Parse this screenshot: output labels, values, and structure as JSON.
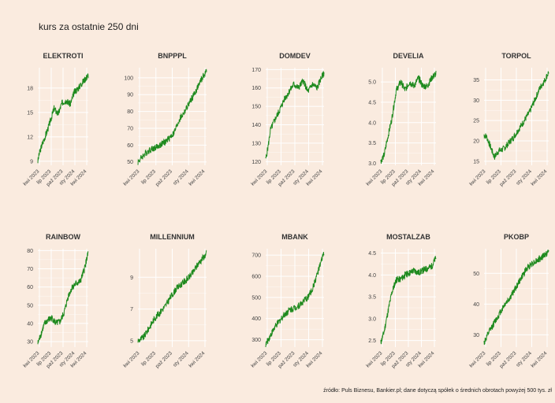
{
  "title": "kurs za ostatnie 250 dni",
  "caption": "źródło: Puls Biznesu, Bankier.pl; dane dotyczą spółek o średnich obrotach powyżej 500 tys. zł",
  "colors": {
    "background": "#faebdf",
    "line": "#1e8a1e",
    "grid": "#ffffff"
  },
  "chart_data": [
    {
      "type": "line",
      "title": "ELEKTROTI",
      "ylim": [
        8.5,
        20.5
      ],
      "yticks": [
        9,
        12,
        15,
        18
      ],
      "xticks": [
        "kwi 2023",
        "lip 2023",
        "paź 2023",
        "sty 2024",
        "kwi 2024"
      ],
      "anchors": [
        [
          0,
          9.0
        ],
        [
          8,
          10.0
        ],
        [
          20,
          11.0
        ],
        [
          40,
          12.3
        ],
        [
          60,
          13.8
        ],
        [
          80,
          15.5
        ],
        [
          100,
          14.8
        ],
        [
          120,
          16.2
        ],
        [
          140,
          16.5
        ],
        [
          160,
          16.0
        ],
        [
          180,
          17.5
        ],
        [
          200,
          18.0
        ],
        [
          220,
          18.7
        ],
        [
          249,
          19.6
        ]
      ]
    },
    {
      "type": "line",
      "title": "BNPPPL",
      "ylim": [
        48,
        106
      ],
      "yticks": [
        50,
        60,
        70,
        80,
        90,
        100
      ],
      "xticks": [
        "kwi 2023",
        "lip 2023",
        "paź 2023",
        "sty 2024",
        "kwi 2024"
      ],
      "anchors": [
        [
          0,
          50
        ],
        [
          20,
          54
        ],
        [
          40,
          57
        ],
        [
          70,
          59
        ],
        [
          100,
          62
        ],
        [
          130,
          67
        ],
        [
          150,
          75
        ],
        [
          170,
          80
        ],
        [
          190,
          86
        ],
        [
          210,
          92
        ],
        [
          230,
          99
        ],
        [
          249,
          104
        ]
      ]
    },
    {
      "type": "line",
      "title": "DOMDEV",
      "ylim": [
        118,
        171
      ],
      "yticks": [
        120,
        130,
        140,
        150,
        160,
        170
      ],
      "xticks": [
        "kwi 2023",
        "lip 2023",
        "paź 2023",
        "sty 2024",
        "kwi 2024"
      ],
      "anchors": [
        [
          0,
          121
        ],
        [
          10,
          128
        ],
        [
          20,
          137
        ],
        [
          40,
          143
        ],
        [
          60,
          148
        ],
        [
          80,
          154
        ],
        [
          100,
          158
        ],
        [
          120,
          162
        ],
        [
          140,
          160
        ],
        [
          160,
          164
        ],
        [
          180,
          158
        ],
        [
          200,
          162
        ],
        [
          220,
          160
        ],
        [
          235,
          165
        ],
        [
          249,
          168
        ]
      ]
    },
    {
      "type": "line",
      "title": "DEVELIA",
      "ylim": [
        2.95,
        5.35
      ],
      "yticks": [
        3.0,
        3.5,
        4.0,
        4.5,
        5.0
      ],
      "xticks": [
        "kwi 2023",
        "lip 2023",
        "paź 2023",
        "sty 2024",
        "kwi 2024"
      ],
      "anchors": [
        [
          0,
          3.05
        ],
        [
          15,
          3.2
        ],
        [
          30,
          3.6
        ],
        [
          50,
          4.1
        ],
        [
          70,
          4.8
        ],
        [
          90,
          5.0
        ],
        [
          110,
          4.8
        ],
        [
          130,
          5.0
        ],
        [
          150,
          4.9
        ],
        [
          170,
          5.1
        ],
        [
          190,
          4.9
        ],
        [
          210,
          4.9
        ],
        [
          230,
          5.1
        ],
        [
          249,
          5.2
        ]
      ]
    },
    {
      "type": "line",
      "title": "TORPOL",
      "ylim": [
        14,
        38
      ],
      "yticks": [
        15,
        20,
        25,
        30,
        35
      ],
      "xticks": [
        "kwi 2023",
        "lip 2023",
        "paź 2023",
        "sty 2024",
        "kwi 2024"
      ],
      "anchors": [
        [
          0,
          21.5
        ],
        [
          10,
          21.0
        ],
        [
          25,
          18.5
        ],
        [
          40,
          16.0
        ],
        [
          55,
          17.5
        ],
        [
          75,
          18.0
        ],
        [
          95,
          19.5
        ],
        [
          115,
          21.0
        ],
        [
          135,
          23.0
        ],
        [
          155,
          25.0
        ],
        [
          175,
          27.0
        ],
        [
          195,
          30.0
        ],
        [
          215,
          33.0
        ],
        [
          235,
          35.0
        ],
        [
          249,
          37.0
        ]
      ]
    },
    {
      "type": "line",
      "title": "RAINBOW",
      "ylim": [
        27,
        81
      ],
      "yticks": [
        30,
        40,
        50,
        60,
        70,
        80
      ],
      "xticks": [
        "kwi 2023",
        "lip 2023",
        "paź 2023",
        "sty 2024",
        "kwi 2024"
      ],
      "anchors": [
        [
          0,
          29
        ],
        [
          15,
          34
        ],
        [
          30,
          39
        ],
        [
          50,
          42
        ],
        [
          70,
          43
        ],
        [
          90,
          40
        ],
        [
          110,
          41
        ],
        [
          130,
          46
        ],
        [
          150,
          55
        ],
        [
          170,
          60
        ],
        [
          190,
          62
        ],
        [
          210,
          63
        ],
        [
          230,
          70
        ],
        [
          249,
          79
        ]
      ]
    },
    {
      "type": "line",
      "title": "MILLENNIUM",
      "ylim": [
        4.6,
        10.8
      ],
      "yticks": [
        5,
        7,
        9
      ],
      "xticks": [
        "kwi 2023",
        "lip 2023",
        "paź 2023",
        "sty 2024",
        "kwi 2024"
      ],
      "anchors": [
        [
          0,
          5.0
        ],
        [
          20,
          5.2
        ],
        [
          40,
          5.8
        ],
        [
          60,
          6.4
        ],
        [
          80,
          6.8
        ],
        [
          100,
          7.2
        ],
        [
          120,
          7.8
        ],
        [
          140,
          8.3
        ],
        [
          160,
          8.6
        ],
        [
          180,
          8.9
        ],
        [
          200,
          9.3
        ],
        [
          220,
          9.9
        ],
        [
          249,
          10.5
        ]
      ]
    },
    {
      "type": "line",
      "title": "MBANK",
      "ylim": [
        265,
        730
      ],
      "yticks": [
        300,
        400,
        500,
        600,
        700
      ],
      "xticks": [
        "kwi 2023",
        "lip 2023",
        "paź 2023",
        "sty 2024",
        "kwi 2024"
      ],
      "anchors": [
        [
          0,
          275
        ],
        [
          20,
          320
        ],
        [
          40,
          360
        ],
        [
          60,
          390
        ],
        [
          80,
          420
        ],
        [
          100,
          440
        ],
        [
          120,
          450
        ],
        [
          140,
          460
        ],
        [
          160,
          480
        ],
        [
          180,
          500
        ],
        [
          200,
          540
        ],
        [
          220,
          610
        ],
        [
          235,
          660
        ],
        [
          249,
          715
        ]
      ]
    },
    {
      "type": "line",
      "title": "MOSTALZAB",
      "ylim": [
        2.35,
        4.6
      ],
      "yticks": [
        2.5,
        3.0,
        3.5,
        4.0,
        4.5
      ],
      "xticks": [
        "kwi 2023",
        "lip 2023",
        "paź 2023",
        "sty 2024",
        "kwi 2024"
      ],
      "anchors": [
        [
          0,
          2.45
        ],
        [
          15,
          2.7
        ],
        [
          30,
          3.1
        ],
        [
          50,
          3.6
        ],
        [
          70,
          3.9
        ],
        [
          90,
          3.9
        ],
        [
          110,
          4.0
        ],
        [
          130,
          4.05
        ],
        [
          150,
          4.1
        ],
        [
          170,
          4.05
        ],
        [
          190,
          4.1
        ],
        [
          210,
          4.15
        ],
        [
          230,
          4.2
        ],
        [
          249,
          4.4
        ]
      ]
    },
    {
      "type": "line",
      "title": "PKOBP",
      "ylim": [
        26,
        58
      ],
      "yticks": [
        30,
        40,
        50
      ],
      "xticks": [
        "kwi 2023",
        "lip 2023",
        "paź 2023",
        "sty 2024",
        "kwi 2024"
      ],
      "anchors": [
        [
          0,
          27.5
        ],
        [
          20,
          31
        ],
        [
          40,
          34
        ],
        [
          60,
          37
        ],
        [
          80,
          40
        ],
        [
          100,
          42
        ],
        [
          120,
          45
        ],
        [
          140,
          48
        ],
        [
          160,
          51
        ],
        [
          180,
          53
        ],
        [
          200,
          54
        ],
        [
          220,
          55
        ],
        [
          249,
          57
        ]
      ]
    }
  ]
}
